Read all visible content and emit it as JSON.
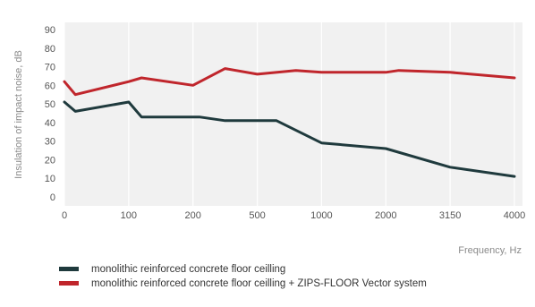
{
  "chart_data": {
    "type": "line",
    "title": "",
    "xlabel": "Frequency, Hz",
    "ylabel": "Insulation of impact noise, dB",
    "x_tick_labels": [
      "0",
      "100",
      "200",
      "500",
      "1000",
      "2000",
      "3150",
      "4000"
    ],
    "x_tick_positions": [
      0,
      1,
      2,
      3,
      4,
      5,
      6,
      7
    ],
    "y_ticks": [
      0,
      10,
      20,
      30,
      40,
      50,
      60,
      70,
      80,
      90
    ],
    "ylim": [
      0,
      90
    ],
    "xlim": [
      0,
      7
    ],
    "grid": "vertical",
    "legend_position": "bottom-left",
    "series": [
      {
        "name": "monolithic reinforced concrete floor ceilling",
        "color": "#1f3a3d",
        "x": [
          0,
          0.17,
          1,
          1.2,
          2.1,
          2.5,
          3.3,
          4,
          5,
          6,
          7
        ],
        "y": [
          51,
          46,
          51,
          43,
          43,
          41,
          41,
          29,
          26,
          16,
          11
        ]
      },
      {
        "name": "monolithic reinforced concrete floor ceilling + ZIPS-FLOOR Vector system",
        "color": "#c0262c",
        "x": [
          0,
          0.17,
          1,
          1.2,
          2,
          2.5,
          3,
          3.6,
          4,
          5,
          5.2,
          6,
          7
        ],
        "y": [
          62,
          55,
          62,
          64,
          60,
          69,
          66,
          68,
          67,
          67,
          68,
          67,
          64
        ]
      }
    ]
  }
}
